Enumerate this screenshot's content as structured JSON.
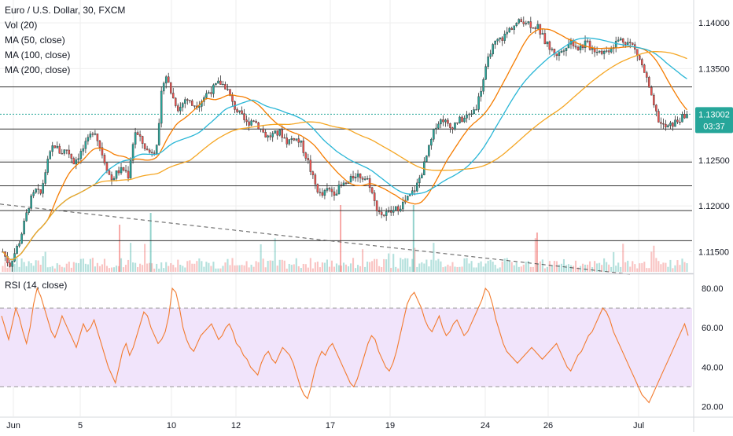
{
  "legend": {
    "symbol": "Euro / U.S. Dollar, 30, FXCM",
    "vol": "Vol (20)",
    "ma50": "MA (50, close)",
    "ma100": "MA (100, close)",
    "ma200": "MA (200, close)"
  },
  "rsi_legend": "RSI (14, close)",
  "price_badge": {
    "value": "1.13002",
    "countdown": "03:37",
    "color": "#26a69a"
  },
  "colors": {
    "up": "#26a69a",
    "down": "#ef5350",
    "ma50": "#f57c00",
    "ma100": "#29b6d6",
    "ma200": "#f5a623",
    "rsi": "#f27b2f",
    "rsi_band": "#f1e4fb",
    "trendline": "#555555",
    "hline": "#333333",
    "grid": "#eeeeee"
  },
  "chart_data": [
    {
      "type": "candlestick",
      "title": "Euro / U.S. Dollar, 30, FXCM",
      "y_ticks": [
        "1.14000",
        "1.13500",
        "1.12500",
        "1.12000",
        "1.11500"
      ],
      "ylim": [
        1.1128,
        1.1425
      ],
      "x_ticks": [
        "Jun",
        "5",
        "10",
        "12",
        "17",
        "19",
        "24",
        "26",
        "Jul"
      ],
      "last_price": 1.13002,
      "horizontal_levels": [
        1.133,
        1.1284,
        1.1248,
        1.1222,
        1.1195,
        1.1162
      ],
      "trendline": {
        "from": 1.1202,
        "to": 1.1125
      },
      "price_path": [
        [
          0,
          1.115
        ],
        [
          2,
          1.1135
        ],
        [
          5,
          1.1162
        ],
        [
          8,
          1.1205
        ],
        [
          10,
          1.1218
        ],
        [
          11,
          1.121
        ],
        [
          13,
          1.1245
        ],
        [
          15,
          1.1268
        ],
        [
          17,
          1.1258
        ],
        [
          19,
          1.1262
        ],
        [
          21,
          1.1248
        ],
        [
          23,
          1.1258
        ],
        [
          25,
          1.127
        ],
        [
          27,
          1.1285
        ],
        [
          28,
          1.1272
        ],
        [
          30,
          1.125
        ],
        [
          32,
          1.1228
        ],
        [
          34,
          1.1238
        ],
        [
          36,
          1.124
        ],
        [
          37,
          1.1232
        ],
        [
          38,
          1.1258
        ],
        [
          39,
          1.1282
        ],
        [
          41,
          1.127
        ],
        [
          43,
          1.1258
        ],
        [
          45,
          1.1262
        ],
        [
          46,
          1.128
        ],
        [
          47,
          1.133
        ],
        [
          48,
          1.1345
        ],
        [
          50,
          1.132
        ],
        [
          52,
          1.1305
        ],
        [
          54,
          1.1318
        ],
        [
          56,
          1.131
        ],
        [
          58,
          1.1312
        ],
        [
          60,
          1.1322
        ],
        [
          62,
          1.1328
        ],
        [
          64,
          1.1335
        ],
        [
          66,
          1.133
        ],
        [
          68,
          1.131
        ],
        [
          70,
          1.13
        ],
        [
          72,
          1.129
        ],
        [
          74,
          1.1295
        ],
        [
          76,
          1.1285
        ],
        [
          78,
          1.1275
        ],
        [
          80,
          1.1278
        ],
        [
          82,
          1.128
        ],
        [
          84,
          1.127
        ],
        [
          86,
          1.1275
        ],
        [
          88,
          1.1268
        ],
        [
          90,
          1.125
        ],
        [
          92,
          1.1225
        ],
        [
          94,
          1.121
        ],
        [
          96,
          1.1218
        ],
        [
          98,
          1.1215
        ],
        [
          100,
          1.1222
        ],
        [
          102,
          1.1225
        ],
        [
          104,
          1.1235
        ],
        [
          106,
          1.1232
        ],
        [
          108,
          1.1228
        ],
        [
          110,
          1.12
        ],
        [
          112,
          1.119
        ],
        [
          114,
          1.1192
        ],
        [
          116,
          1.1196
        ],
        [
          118,
          1.1202
        ],
        [
          120,
          1.121
        ],
        [
          122,
          1.122
        ],
        [
          124,
          1.124
        ],
        [
          126,
          1.1265
        ],
        [
          128,
          1.129
        ],
        [
          130,
          1.1295
        ],
        [
          132,
          1.1285
        ],
        [
          134,
          1.1292
        ],
        [
          136,
          1.1295
        ],
        [
          138,
          1.13
        ],
        [
          140,
          1.131
        ],
        [
          142,
          1.134
        ],
        [
          144,
          1.137
        ],
        [
          146,
          1.138
        ],
        [
          148,
          1.1385
        ],
        [
          150,
          1.1395
        ],
        [
          152,
          1.14
        ],
        [
          154,
          1.1403
        ],
        [
          156,
          1.1398
        ],
        [
          158,
          1.1395
        ],
        [
          160,
          1.138
        ],
        [
          162,
          1.137
        ],
        [
          164,
          1.1365
        ],
        [
          166,
          1.1375
        ],
        [
          168,
          1.138
        ],
        [
          170,
          1.1372
        ],
        [
          172,
          1.1378
        ],
        [
          174,
          1.1372
        ],
        [
          176,
          1.137
        ],
        [
          178,
          1.1368
        ],
        [
          180,
          1.1375
        ],
        [
          182,
          1.1382
        ],
        [
          184,
          1.138
        ],
        [
          186,
          1.1375
        ],
        [
          188,
          1.136
        ],
        [
          190,
          1.134
        ],
        [
          192,
          1.131
        ],
        [
          194,
          1.129
        ],
        [
          196,
          1.1285
        ],
        [
          198,
          1.129
        ],
        [
          200,
          1.1295
        ],
        [
          202,
          1.13
        ]
      ]
    },
    {
      "type": "line",
      "title": "RSI (14, close)",
      "y_ticks": [
        "80.00",
        "60.00",
        "40.00",
        "20.00"
      ],
      "ylim": [
        15,
        86
      ],
      "band": [
        30,
        70
      ],
      "x_ticks": [
        "Jun",
        "5",
        "10",
        "12",
        "17",
        "19",
        "24",
        "26",
        "Jul"
      ],
      "values": [
        66,
        60,
        54,
        62,
        70,
        65,
        58,
        52,
        60,
        72,
        80,
        76,
        70,
        64,
        58,
        55,
        60,
        66,
        62,
        58,
        54,
        50,
        56,
        62,
        58,
        60,
        64,
        58,
        52,
        46,
        40,
        36,
        32,
        40,
        48,
        52,
        46,
        50,
        56,
        62,
        68,
        66,
        60,
        56,
        52,
        54,
        58,
        66,
        80,
        78,
        70,
        60,
        54,
        50,
        48,
        52,
        56,
        58,
        60,
        62,
        58,
        54,
        56,
        60,
        62,
        58,
        52,
        50,
        46,
        44,
        40,
        38,
        36,
        42,
        46,
        48,
        44,
        42,
        46,
        50,
        48,
        46,
        42,
        36,
        30,
        26,
        24,
        30,
        38,
        44,
        48,
        46,
        50,
        52,
        48,
        44,
        40,
        36,
        32,
        30,
        34,
        40,
        46,
        52,
        56,
        54,
        48,
        44,
        40,
        38,
        42,
        48,
        56,
        64,
        72,
        76,
        78,
        74,
        70,
        64,
        60,
        58,
        62,
        66,
        60,
        56,
        58,
        62,
        64,
        60,
        56,
        58,
        62,
        66,
        70,
        74,
        80,
        78,
        72,
        64,
        58,
        52,
        48,
        46,
        44,
        42,
        44,
        46,
        48,
        50,
        48,
        46,
        44,
        46,
        48,
        50,
        52,
        48,
        44,
        40,
        38,
        42,
        46,
        48,
        52,
        56,
        58,
        62,
        66,
        70,
        68,
        64,
        58,
        54,
        50,
        46,
        42,
        38,
        34,
        30,
        26,
        24,
        22,
        26,
        30,
        34,
        38,
        42,
        46,
        50,
        54,
        58,
        62,
        56
      ]
    }
  ]
}
